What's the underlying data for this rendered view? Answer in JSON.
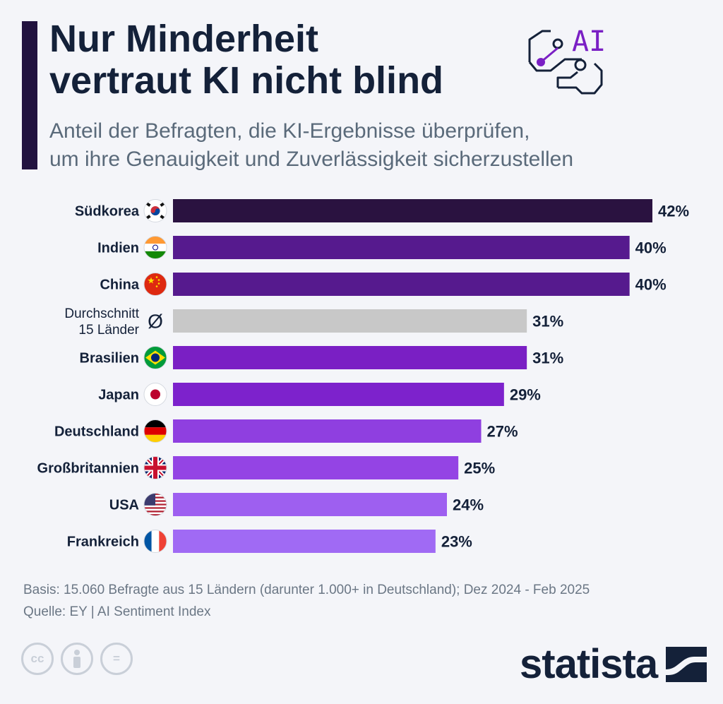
{
  "header": {
    "title": "Nur Minderheit\nvertraut KI nicht blind",
    "subtitle": "Anteil der Befragten, die KI-Ergebnisse überprüfen,\num ihre Genauigkeit und Zuverlässigkeit sicherzustellen",
    "icon_text": "AI"
  },
  "chart_data": {
    "type": "bar",
    "orientation": "horizontal",
    "categories": [
      "Südkorea",
      "Indien",
      "China",
      "Durchschnitt\n15 Länder",
      "Brasilien",
      "Japan",
      "Deutschland",
      "Großbritannien",
      "USA",
      "Frankreich"
    ],
    "values": [
      42,
      40,
      40,
      31,
      31,
      29,
      27,
      25,
      24,
      23
    ],
    "value_labels": [
      "42%",
      "40%",
      "40%",
      "31%",
      "31%",
      "29%",
      "27%",
      "25%",
      "24%",
      "23%"
    ],
    "markers": [
      "kr-flag",
      "in-flag",
      "cn-flag",
      "average-symbol",
      "br-flag",
      "jp-flag",
      "de-flag",
      "gb-flag",
      "us-flag",
      "fr-flag"
    ],
    "average_marker": "Ø",
    "highlight_index": 3,
    "colors": [
      "#2a1240",
      "#561a8e",
      "#561a8e",
      "#c8c8c8",
      "#7a1fc4",
      "#7d22cc",
      "#8f3fe0",
      "#9444e4",
      "#9e5ff0",
      "#a06af4"
    ],
    "xlim": [
      0,
      42
    ],
    "unit": "%",
    "grid": false
  },
  "footer": {
    "basis": "Basis: 15.060 Befragte aus 15 Ländern (darunter 1.000+ in Deutschland); Dez 2024 - Feb 2025",
    "source": "Quelle: EY | AI Sentiment Index"
  },
  "license_icons": [
    "cc",
    "by-person",
    "nd-equals"
  ],
  "license_glyphs": [
    "cc",
    "",
    "="
  ],
  "logo": {
    "text": "statista",
    "color": "#142139"
  }
}
